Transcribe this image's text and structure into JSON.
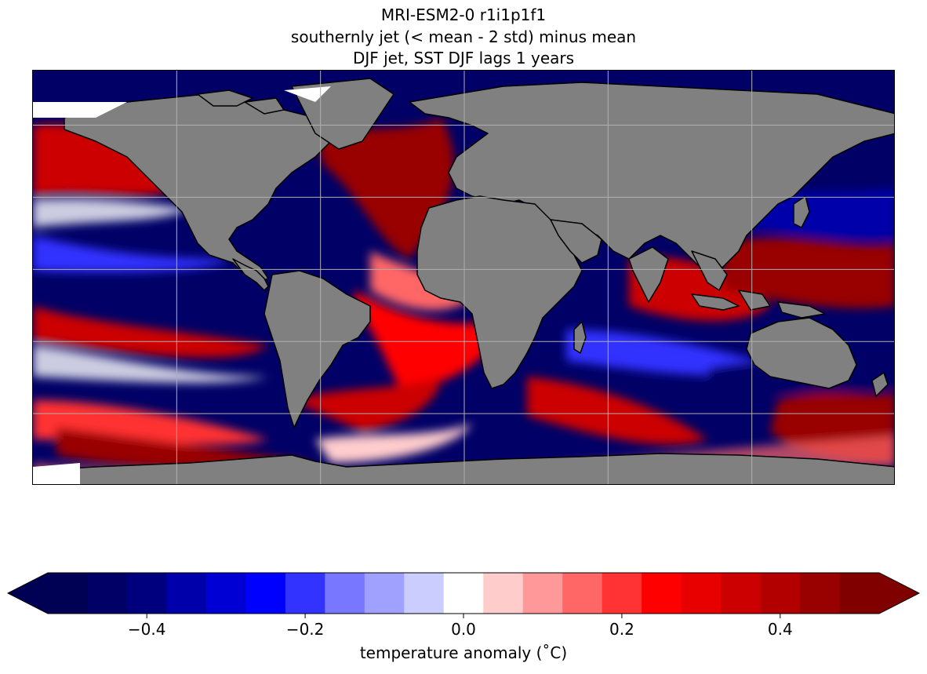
{
  "titles": {
    "line1": "MRI-ESM2-0 r1i1p1f1",
    "line2": "southernly jet (< mean - 2 std) minus mean",
    "line3": "DJF jet, SST DJF lags 1 years"
  },
  "colorbar": {
    "label": "temperature anomaly ($^\\circ$C)",
    "label_display": "temperature anomaly (˚C)",
    "ticks": [
      "−0.4",
      "−0.2",
      "0.0",
      "0.2",
      "0.4"
    ],
    "tick_values": [
      -0.4,
      -0.2,
      0.0,
      0.2,
      0.4
    ],
    "range": [
      -0.525,
      0.525
    ],
    "extend": "both",
    "levels": [
      -0.525,
      -0.475,
      -0.425,
      -0.375,
      -0.325,
      -0.275,
      -0.225,
      -0.175,
      -0.125,
      -0.075,
      -0.025,
      0.025,
      0.075,
      0.125,
      0.175,
      0.225,
      0.275,
      0.325,
      0.375,
      0.425,
      0.475,
      0.525
    ],
    "colors": [
      "#000055",
      "#000066",
      "#00007f",
      "#0000aa",
      "#0000d4",
      "#0000ff",
      "#3333ff",
      "#7777ff",
      "#a0a0ff",
      "#cccdff",
      "#ffffff",
      "#ffcccc",
      "#ff9999",
      "#ff6666",
      "#ff3333",
      "#ff0000",
      "#e80000",
      "#cc0000",
      "#b20000",
      "#990000",
      "#800000"
    ]
  },
  "map": {
    "projection": "PlateCarree",
    "gridlines": true,
    "land_color": "#808080",
    "ocean_pattern": "SST anomaly field"
  }
}
